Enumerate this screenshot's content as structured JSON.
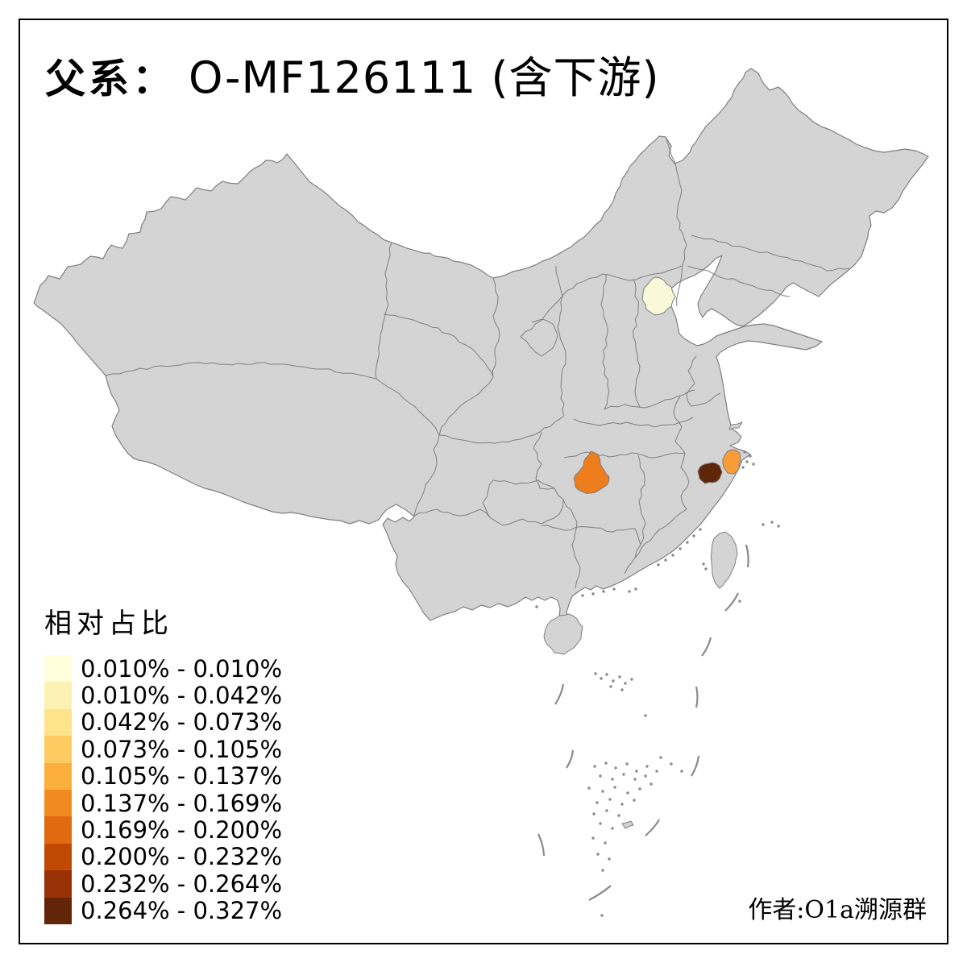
{
  "title": {
    "prefix": "父系：",
    "code": "O-MF126111 (含下游)"
  },
  "legend": {
    "title": "相对占比",
    "classes": [
      {
        "label": "0.010% - 0.010%",
        "color": "#FFFFDC"
      },
      {
        "label": "0.010% - 0.042%",
        "color": "#FBF2B4"
      },
      {
        "label": "0.042% - 0.073%",
        "color": "#FDE38B"
      },
      {
        "label": "0.073% - 0.105%",
        "color": "#FDCB62"
      },
      {
        "label": "0.105% - 0.137%",
        "color": "#FDAF3D"
      },
      {
        "label": "0.137% - 0.169%",
        "color": "#F28A22"
      },
      {
        "label": "0.169% - 0.200%",
        "color": "#E06A10"
      },
      {
        "label": "0.200% - 0.232%",
        "color": "#C14A02"
      },
      {
        "label": "0.232% - 0.264%",
        "color": "#993106"
      },
      {
        "label": "0.264% - 0.327%",
        "color": "#622508"
      }
    ]
  },
  "attribution": "作者:O1a溯源群",
  "map": {
    "land_fill": "#D4D4D4",
    "border_color": "#7F7F7F",
    "sea_fill": "#FFFFFF",
    "frame_color": "#000000",
    "island_dot_color": "#8A8A8A"
  },
  "regions": [
    {
      "id": "highlight-region-north",
      "color": "#F9F8D8",
      "legend_label": "0.010% - 0.010%"
    },
    {
      "id": "highlight-region-central",
      "color": "#EE7D1E",
      "legend_label": "0.137% - 0.169%"
    },
    {
      "id": "highlight-region-east-coastal",
      "color": "#F89C38",
      "legend_label": "0.105% - 0.137%"
    },
    {
      "id": "highlight-region-east-inland",
      "color": "#5F2609",
      "legend_label": "0.264% - 0.327%"
    }
  ]
}
